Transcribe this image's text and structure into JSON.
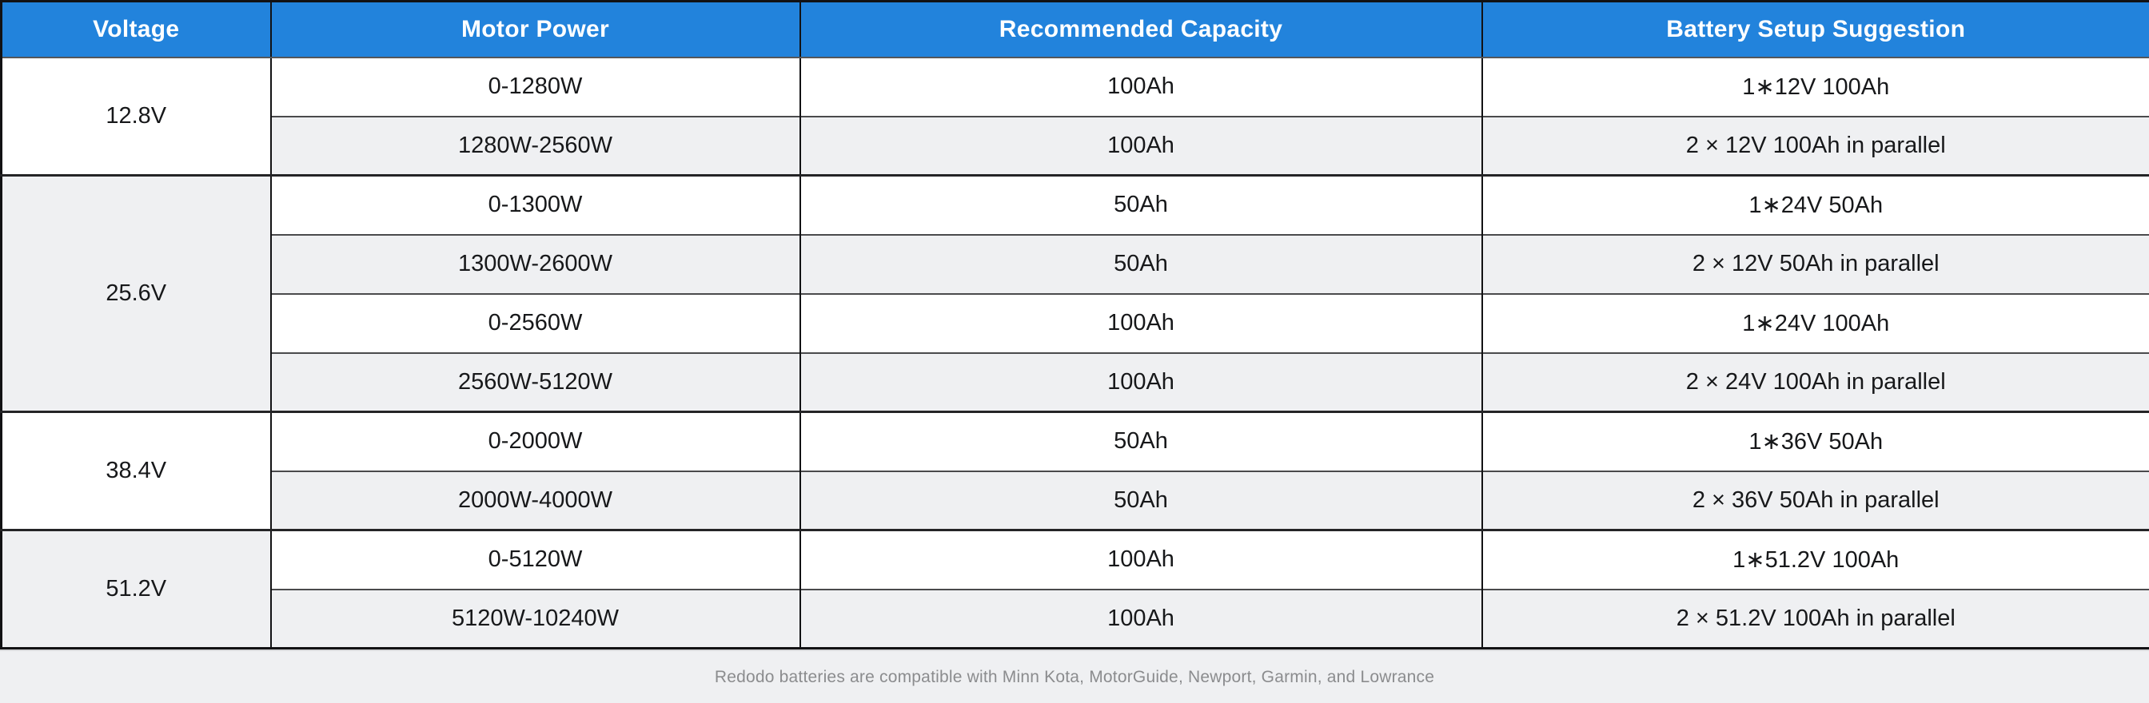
{
  "table": {
    "columns": [
      "Voltage",
      "Motor Power",
      "Recommended Capacity",
      "Battery Setup Suggestion"
    ],
    "groups": [
      {
        "voltage": "12.8V",
        "rows": [
          {
            "motor_power": "0-1280W",
            "capacity": "100Ah",
            "setup": "1∗12V 100Ah"
          },
          {
            "motor_power": "1280W-2560W",
            "capacity": "100Ah",
            "setup": "2 × 12V 100Ah in parallel"
          }
        ]
      },
      {
        "voltage": "25.6V",
        "rows": [
          {
            "motor_power": "0-1300W",
            "capacity": "50Ah",
            "setup": "1∗24V 50Ah"
          },
          {
            "motor_power": "1300W-2600W",
            "capacity": "50Ah",
            "setup": "2 × 12V 50Ah in parallel"
          },
          {
            "motor_power": "0-2560W",
            "capacity": "100Ah",
            "setup": "1∗24V 100Ah"
          },
          {
            "motor_power": "2560W-5120W",
            "capacity": "100Ah",
            "setup": "2 × 24V 100Ah in parallel"
          }
        ]
      },
      {
        "voltage": "38.4V",
        "rows": [
          {
            "motor_power": "0-2000W",
            "capacity": "50Ah",
            "setup": "1∗36V 50Ah"
          },
          {
            "motor_power": "2000W-4000W",
            "capacity": "50Ah",
            "setup": "2 × 36V 50Ah in parallel"
          }
        ]
      },
      {
        "voltage": "51.2V",
        "rows": [
          {
            "motor_power": "0-5120W",
            "capacity": "100Ah",
            "setup": "1∗51.2V 100Ah"
          },
          {
            "motor_power": "5120W-10240W",
            "capacity": "100Ah",
            "setup": "2 × 51.2V 100Ah in parallel"
          }
        ]
      }
    ]
  },
  "chart_data": {
    "type": "table",
    "title": "",
    "columns": [
      "Voltage",
      "Motor Power",
      "Recommended Capacity",
      "Battery Setup Suggestion"
    ],
    "rows": [
      [
        "12.8V",
        "0-1280W",
        "100Ah",
        "1∗12V 100Ah"
      ],
      [
        "12.8V",
        "1280W-2560W",
        "100Ah",
        "2 × 12V 100Ah in parallel"
      ],
      [
        "25.6V",
        "0-1300W",
        "50Ah",
        "1∗24V 50Ah"
      ],
      [
        "25.6V",
        "1300W-2600W",
        "50Ah",
        "2 × 12V 50Ah in parallel"
      ],
      [
        "25.6V",
        "0-2560W",
        "100Ah",
        "1∗24V 100Ah"
      ],
      [
        "25.6V",
        "2560W-5120W",
        "100Ah",
        "2 × 24V 100Ah in parallel"
      ],
      [
        "38.4V",
        "0-2000W",
        "50Ah",
        "1∗36V 50Ah"
      ],
      [
        "38.4V",
        "2000W-4000W",
        "50Ah",
        "2 × 36V 50Ah in parallel"
      ],
      [
        "51.2V",
        "0-5120W",
        "100Ah",
        "1∗51.2V 100Ah"
      ],
      [
        "51.2V",
        "5120W-10240W",
        "100Ah",
        "2 × 51.2V 100Ah in parallel"
      ]
    ],
    "layout_hints": {
      "merged_first_column": true,
      "row_striping": "white / light-gray alternating within each voltage group",
      "header_style": "blue background, white bold text, centered",
      "all_cells_centered": true
    }
  },
  "footer": {
    "note": "Redodo batteries are compatible with Minn Kota, MotorGuide, Newport, Garmin, and Lowrance"
  },
  "colors": {
    "header_bg": "#2283DC",
    "row_bg": "#FFFFFF",
    "row_alt_bg": "#EFF0F2",
    "border_outer": "#121214",
    "border_inner": "#4A4A4C",
    "border_group": "#242426",
    "border_header": "#55575A",
    "footer_shadow": "#D7D8DA",
    "cell_text": "#17181A",
    "header_text": "#FFFFFF",
    "footer_text": "#8B8C8E"
  }
}
